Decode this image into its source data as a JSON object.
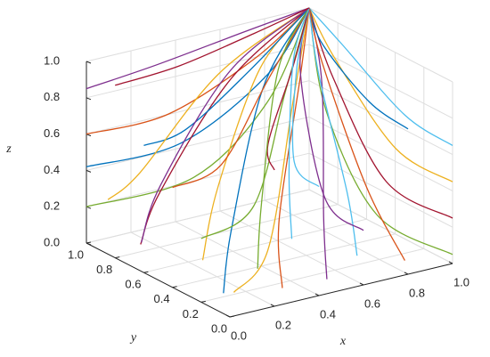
{
  "chart_data": {
    "type": "line3d",
    "xlabel": "x",
    "ylabel": "y",
    "zlabel": "z",
    "xlim": [
      0,
      1
    ],
    "ylim": [
      0,
      1
    ],
    "zlim": [
      0,
      1
    ],
    "xticks": [
      {
        "value": 0,
        "label": "0.0"
      },
      {
        "value": 0.2,
        "label": "0.2"
      },
      {
        "value": 0.4,
        "label": "0.4"
      },
      {
        "value": 0.6,
        "label": "0.6"
      },
      {
        "value": 0.8,
        "label": "0.8"
      },
      {
        "value": 1,
        "label": "1.0"
      }
    ],
    "yticks": [
      {
        "value": 0,
        "label": "0.0"
      },
      {
        "value": 0.2,
        "label": "0.2"
      },
      {
        "value": 0.4,
        "label": "0.4"
      },
      {
        "value": 0.6,
        "label": "0.6"
      },
      {
        "value": 0.8,
        "label": "0.8"
      },
      {
        "value": 1,
        "label": "1.0"
      }
    ],
    "zticks": [
      {
        "value": 0,
        "label": "0.0"
      },
      {
        "value": 0.2,
        "label": "0.2"
      },
      {
        "value": 0.4,
        "label": "0.4"
      },
      {
        "value": 0.6,
        "label": "0.6"
      },
      {
        "value": 0.8,
        "label": "0.8"
      },
      {
        "value": 1,
        "label": "1.0"
      }
    ],
    "grid": true,
    "series": [
      {
        "color": "#7e2f8e",
        "x": [
          0,
          0.3,
          0.7,
          1
        ],
        "y": [
          1,
          0.98,
          0.99,
          1
        ],
        "z": [
          0.85,
          0.9,
          0.96,
          1
        ]
      },
      {
        "color": "#d95319",
        "x": [
          0,
          0.35,
          0.75,
          1
        ],
        "y": [
          1,
          0.97,
          0.99,
          1
        ],
        "z": [
          0.6,
          0.62,
          0.8,
          1
        ]
      },
      {
        "color": "#0072bd",
        "x": [
          0,
          0.4,
          0.8,
          1
        ],
        "y": [
          1,
          0.96,
          0.98,
          1
        ],
        "z": [
          0.42,
          0.45,
          0.7,
          1
        ]
      },
      {
        "color": "#77ac30",
        "x": [
          0,
          0.45,
          0.8,
          1
        ],
        "y": [
          1,
          0.95,
          0.98,
          1
        ],
        "z": [
          0.2,
          0.25,
          0.55,
          1
        ]
      },
      {
        "color": "#4dbeee",
        "x": [
          1,
          0.98,
          0.99,
          1
        ],
        "y": [
          0,
          0.3,
          0.75,
          1
        ],
        "z": [
          0.65,
          0.7,
          0.9,
          1
        ]
      },
      {
        "color": "#edb120",
        "x": [
          1,
          0.97,
          0.99,
          1
        ],
        "y": [
          0,
          0.35,
          0.8,
          1
        ],
        "z": [
          0.45,
          0.5,
          0.8,
          1
        ]
      },
      {
        "color": "#a2142f",
        "x": [
          1,
          0.96,
          0.98,
          1
        ],
        "y": [
          0,
          0.4,
          0.8,
          1
        ],
        "z": [
          0.25,
          0.3,
          0.7,
          1
        ]
      },
      {
        "color": "#77ac30",
        "x": [
          1,
          0.95,
          0.98,
          1
        ],
        "y": [
          0,
          0.45,
          0.85,
          1
        ],
        "z": [
          0.05,
          0.1,
          0.5,
          1
        ]
      },
      {
        "color": "#0072bd",
        "x": [
          0.1,
          0.2,
          0.6,
          1
        ],
        "y": [
          0.2,
          0.3,
          0.7,
          1
        ],
        "z": [
          0.02,
          0.3,
          0.8,
          1
        ]
      },
      {
        "color": "#d95319",
        "x": [
          0.3,
          0.35,
          0.7,
          1
        ],
        "y": [
          0.1,
          0.2,
          0.6,
          1
        ],
        "z": [
          0.03,
          0.35,
          0.85,
          1
        ]
      },
      {
        "color": "#7e2f8e",
        "x": [
          0.5,
          0.55,
          0.8,
          1
        ],
        "y": [
          0.1,
          0.2,
          0.6,
          1
        ],
        "z": [
          0.02,
          0.3,
          0.8,
          1
        ]
      },
      {
        "color": "#edb120",
        "x": [
          0.2,
          0.3,
          0.65,
          1
        ],
        "y": [
          0.5,
          0.55,
          0.8,
          1
        ],
        "z": [
          0.05,
          0.4,
          0.85,
          1
        ]
      },
      {
        "color": "#4dbeee",
        "x": [
          0.7,
          0.72,
          0.85,
          1
        ],
        "y": [
          0.2,
          0.3,
          0.7,
          1
        ],
        "z": [
          0.05,
          0.35,
          0.8,
          1
        ]
      },
      {
        "color": "#a2142f",
        "x": [
          0.05,
          0.15,
          0.55,
          1
        ],
        "y": [
          0.7,
          0.72,
          0.85,
          1
        ],
        "z": [
          0.1,
          0.35,
          0.8,
          1
        ]
      },
      {
        "color": "#0072bd",
        "x": [
          0,
          0.2,
          0.6,
          1
        ],
        "y": [
          0.6,
          0.62,
          0.8,
          1
        ],
        "z": [
          0.7,
          0.72,
          0.85,
          1
        ]
      },
      {
        "color": "#d95319",
        "x": [
          0,
          0.25,
          0.65,
          1
        ],
        "y": [
          0.4,
          0.45,
          0.75,
          1
        ],
        "z": [
          0.55,
          0.58,
          0.8,
          1
        ]
      },
      {
        "color": "#77ac30",
        "x": [
          0,
          0.3,
          0.7,
          1
        ],
        "y": [
          0.2,
          0.3,
          0.7,
          1
        ],
        "z": [
          0.35,
          0.4,
          0.75,
          1
        ]
      },
      {
        "color": "#edb120",
        "x": [
          0.05,
          0.3,
          0.7,
          1
        ],
        "y": [
          0.05,
          0.2,
          0.65,
          1
        ],
        "z": [
          0.1,
          0.2,
          0.7,
          1
        ]
      },
      {
        "color": "#7e2f8e",
        "x": [
          0.6,
          0.62,
          0.8,
          1
        ],
        "y": [
          0,
          0.3,
          0.75,
          1
        ],
        "z": [
          0.3,
          0.35,
          0.8,
          1
        ]
      },
      {
        "color": "#4dbeee",
        "x": [
          0.4,
          0.45,
          0.75,
          1
        ],
        "y": [
          0,
          0.25,
          0.7,
          1
        ],
        "z": [
          0.6,
          0.62,
          0.85,
          1
        ]
      },
      {
        "color": "#a2142f",
        "x": [
          0.2,
          0.3,
          0.7,
          1
        ],
        "y": [
          0,
          0.2,
          0.65,
          1
        ],
        "z": [
          0.75,
          0.78,
          0.9,
          1
        ]
      },
      {
        "color": "#0072bd",
        "x": [
          0.8,
          0.82,
          0.9,
          1
        ],
        "y": [
          0,
          0.3,
          0.75,
          1
        ],
        "z": [
          0.8,
          0.82,
          0.93,
          1
        ]
      },
      {
        "color": "#d95319",
        "x": [
          0.85,
          0.87,
          0.93,
          1
        ],
        "y": [
          0.1,
          0.4,
          0.8,
          1
        ],
        "z": [
          0.02,
          0.3,
          0.8,
          1
        ]
      },
      {
        "color": "#77ac30",
        "x": [
          0.35,
          0.4,
          0.7,
          1
        ],
        "y": [
          0.35,
          0.4,
          0.75,
          1
        ],
        "z": [
          0.02,
          0.35,
          0.85,
          1
        ]
      },
      {
        "color": "#edb120",
        "x": [
          0,
          0.15,
          0.55,
          1
        ],
        "y": [
          0.85,
          0.86,
          0.93,
          1
        ],
        "z": [
          0.3,
          0.4,
          0.8,
          1
        ]
      },
      {
        "color": "#7e2f8e",
        "x": [
          0.15,
          0.25,
          0.6,
          1
        ],
        "y": [
          0.85,
          0.87,
          0.93,
          1
        ],
        "z": [
          0.02,
          0.3,
          0.8,
          1
        ]
      },
      {
        "color": "#4dbeee",
        "x": [
          0.6,
          0.62,
          0.8,
          1
        ],
        "y": [
          0.5,
          0.55,
          0.8,
          1
        ],
        "z": [
          0.05,
          0.4,
          0.85,
          1
        ]
      },
      {
        "color": "#a2142f",
        "x": [
          0,
          0.3,
          0.7,
          1
        ],
        "y": [
          0.8,
          0.82,
          0.92,
          1
        ],
        "z": [
          0.95,
          0.96,
          0.98,
          1
        ]
      }
    ]
  }
}
